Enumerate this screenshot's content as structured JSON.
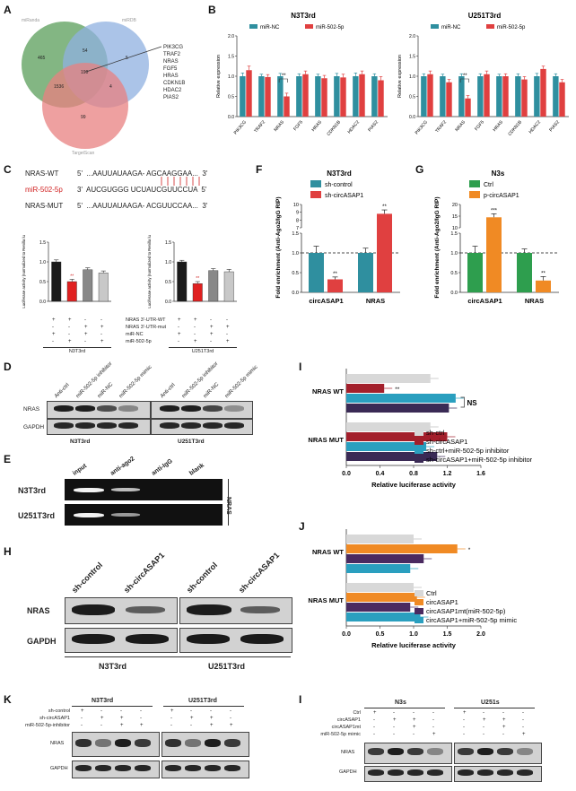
{
  "colors": {
    "teal": "#2f8f9f",
    "red": "#e04040",
    "darkred": "#a31f2b",
    "navy": "#3a2a55",
    "blue": "#2a9fbf",
    "green": "#2e9e4e",
    "orange": "#f08a24",
    "purple": "#4a2a60",
    "lightgray": "#d8d8d8"
  },
  "panel_labels": {
    "A": "A",
    "B": "B",
    "C": "C",
    "D": "D",
    "E": "E",
    "F": "F",
    "G": "G",
    "H": "H",
    "I": "I",
    "J": "J",
    "K": "K",
    "L": "I"
  },
  "panelA": {
    "top_left_label": "miRanda",
    "top_right_label": "miRDB",
    "bottom_label": "TargetScan",
    "counts": [
      "465",
      "54",
      "5",
      "1536",
      "190",
      "4",
      "99"
    ],
    "genes": [
      "PIK3CG",
      "TRAF2",
      "NRAS",
      "FGF5",
      "HRAS",
      "CDKN1B",
      "HDAC2",
      "PIAS2"
    ]
  },
  "panelC": {
    "wt_label": "NRAS-WT",
    "wt_seq": "5'  ...AAUUAUAAGA- AGCAAGGAA...  3'",
    "mir_label": "miR-502-5p",
    "mir_seq": "3'  AUCGUGGG UCUAUCGUUCCUA  5'",
    "mut_label": "NRAS-MUT",
    "mut_seq": "5'  ...AAUUAUAAGA- ACGUUCCAA...  3'",
    "ylabel": "Relative Luciferase activity (normalized to Renilla luciferase)",
    "rows": [
      "NRAS 3'-UTR-WT",
      "NRAS 3'-UTR-mut",
      "miR-NC",
      "miR-502-5p"
    ],
    "signs": [
      [
        "+",
        "+",
        "-",
        "-"
      ],
      [
        "-",
        "-",
        "+",
        "+"
      ],
      [
        "+",
        "-",
        "+",
        "-"
      ],
      [
        "-",
        "+",
        "-",
        "+"
      ]
    ],
    "group1": "N3T3rd",
    "group2": "U251T3rd"
  },
  "panelD": {
    "lanes": [
      "Anti-ctrl",
      "miR-502-5p inhibitor",
      "miR-NC",
      "miR-502-5p mimic",
      "Anti-ctrl",
      "miR-502-5p inhibitor",
      "miR-NC",
      "miR-502-5p mimic"
    ],
    "rows": [
      "NRAS",
      "GAPDH"
    ],
    "group1": "N3T3rd",
    "group2": "U251T3rd"
  },
  "panelE": {
    "lanes": [
      "input",
      "anti-ago2",
      "anti-IgG",
      "blank"
    ],
    "rows": [
      "N3T3rd",
      "U251T3rd"
    ],
    "side": "NRAS"
  },
  "panelH": {
    "lanes": [
      "sh-control",
      "sh-circASAP1",
      "sh-control",
      "sh-circASAP1"
    ],
    "rows": [
      "NRAS",
      "GAPDH"
    ],
    "group1": "N3T3rd",
    "group2": "U251T3rd"
  },
  "panelK": {
    "rows": [
      "sh-control",
      "sh-circASAP1",
      "miR-502-5p-inhibitor"
    ],
    "signs": [
      [
        "+",
        "-",
        "-",
        "-"
      ],
      [
        "-",
        "+",
        "+",
        "-"
      ],
      [
        "-",
        "-",
        "+",
        "+"
      ]
    ],
    "blots": [
      "NRAS",
      "GAPDH"
    ],
    "group1": "N3T3rd",
    "group2": "U251T3rd"
  },
  "panelL": {
    "rows": [
      "Ctrl",
      "circASAP1",
      "circASAP1mt",
      "miR-502-5p mimic"
    ],
    "signs": [
      [
        "+",
        "-",
        "-",
        "-"
      ],
      [
        "-",
        "+",
        "+",
        "-"
      ],
      [
        "-",
        "-",
        "+",
        "-"
      ],
      [
        "-",
        "-",
        "-",
        "+"
      ]
    ],
    "blots": [
      "NRAS",
      "GAPDH"
    ],
    "group1": "N3s",
    "group2": "U251s"
  },
  "chart_data": [
    {
      "id": "B1",
      "type": "bar",
      "title": "N3T3rd",
      "ylabel": "Relative expression",
      "ylim": [
        0,
        2
      ],
      "yticks": [
        "0.0",
        "0.5",
        "1.0",
        "1.5",
        "2.0"
      ],
      "categories": [
        "PIK3CG",
        "TRAF2",
        "NRAS",
        "FGF5",
        "HRAS",
        "CDKN1B",
        "HDAC2",
        "PIAS2"
      ],
      "series": [
        {
          "name": "miR-NC",
          "color": "#2f8f9f",
          "values": [
            1.0,
            1.0,
            1.0,
            1.0,
            1.0,
            1.0,
            1.0,
            1.0
          ],
          "errors": [
            0.08,
            0.05,
            0.07,
            0.06,
            0.05,
            0.07,
            0.08,
            0.06
          ]
        },
        {
          "name": "miR-502-5p",
          "color": "#e04040",
          "values": [
            1.15,
            0.98,
            0.5,
            1.05,
            0.95,
            0.97,
            1.05,
            0.9
          ],
          "errors": [
            0.1,
            0.06,
            0.08,
            0.08,
            0.07,
            0.08,
            0.08,
            0.09
          ]
        }
      ],
      "annotation": {
        "category": "NRAS",
        "text": "**"
      }
    },
    {
      "id": "B2",
      "type": "bar",
      "title": "U251T3rd",
      "ylabel": "Relative expression",
      "ylim": [
        0,
        2
      ],
      "yticks": [
        "0.0",
        "0.5",
        "1.0",
        "1.5",
        "2.0"
      ],
      "categories": [
        "PIK3CG",
        "TRAF2",
        "NRAS",
        "FGF5",
        "HRAS",
        "CDKN1B",
        "HDAC2",
        "PIAS2"
      ],
      "series": [
        {
          "name": "miR-NC",
          "color": "#2f8f9f",
          "values": [
            1.0,
            1.0,
            1.0,
            1.0,
            1.0,
            1.0,
            1.0,
            1.0
          ],
          "errors": [
            0.06,
            0.05,
            0.06,
            0.06,
            0.05,
            0.06,
            0.07,
            0.06
          ]
        },
        {
          "name": "miR-502-5p",
          "color": "#e04040",
          "values": [
            1.05,
            0.85,
            0.45,
            1.05,
            1.0,
            0.92,
            1.18,
            0.85
          ],
          "errors": [
            0.08,
            0.07,
            0.07,
            0.08,
            0.06,
            0.07,
            0.07,
            0.07
          ]
        }
      ],
      "annotation": {
        "category": "NRAS",
        "text": "**"
      }
    },
    {
      "id": "C1",
      "type": "bar",
      "title": "",
      "ylim": [
        0,
        1.5
      ],
      "yticks": [
        "0.0",
        "0.5",
        "1.0",
        "1.5"
      ],
      "values": [
        1.0,
        0.5,
        0.8,
        0.72
      ],
      "errors": [
        0.05,
        0.06,
        0.05,
        0.05
      ],
      "colors": [
        "#1a1a1a",
        "#e02020",
        "#888888",
        "#c8c8c8"
      ],
      "annotation": {
        "index": 1,
        "text": "**"
      }
    },
    {
      "id": "C2",
      "type": "bar",
      "title": "",
      "ylim": [
        0,
        1.5
      ],
      "yticks": [
        "0.0",
        "0.5",
        "1.0",
        "1.5"
      ],
      "values": [
        1.0,
        0.45,
        0.78,
        0.75
      ],
      "errors": [
        0.04,
        0.05,
        0.05,
        0.06
      ],
      "colors": [
        "#1a1a1a",
        "#e02020",
        "#888888",
        "#c8c8c8"
      ],
      "annotation": {
        "index": 1,
        "text": "**"
      }
    },
    {
      "id": "F",
      "type": "bar",
      "title": "N3T3rd",
      "ylabel": "Fold enrichment (Anti-Ago2/IgG RIP)",
      "yticks": [
        "0.0",
        "0.5",
        "1.0",
        "1.5",
        "7",
        "8",
        "9",
        "10"
      ],
      "categories": [
        "circASAP1",
        "NRAS"
      ],
      "series": [
        {
          "name": "sh-control",
          "color": "#2f8f9f",
          "values": [
            1.0,
            1.0
          ],
          "errors": [
            0.17,
            0.12
          ]
        },
        {
          "name": "sh-circASAP1",
          "color": "#e04040",
          "values": [
            0.33,
            8.8
          ],
          "errors": [
            0.06,
            0.5
          ]
        }
      ],
      "annotations": [
        "**",
        "**"
      ]
    },
    {
      "id": "G",
      "type": "bar",
      "title": "N3s",
      "ylabel": "Fold enrichment (Anti-Ago2/IgG RIP)",
      "yticks": [
        "0.0",
        "0.5",
        "1.0",
        "1.5",
        "10",
        "15",
        "20"
      ],
      "categories": [
        "circASAP1",
        "NRAS"
      ],
      "series": [
        {
          "name": "Ctrl",
          "color": "#2e9e4e",
          "values": [
            1.0,
            1.0
          ],
          "errors": [
            0.17,
            0.1
          ]
        },
        {
          "name": "p-circASAP1",
          "color": "#f08a24",
          "values": [
            14.5,
            0.3
          ],
          "errors": [
            1.5,
            0.1
          ]
        }
      ],
      "annotations": [
        "***",
        "**"
      ]
    },
    {
      "id": "I",
      "type": "bar",
      "orientation": "horizontal",
      "xlabel": "Relative luciferase activity",
      "xlim": [
        0,
        1.6
      ],
      "xticks": [
        "0.0",
        "0.4",
        "0.8",
        "1.2",
        "1.6"
      ],
      "categories": [
        "NRAS WT",
        "NRAS MUT"
      ],
      "series": [
        {
          "name": "sh-ctrl",
          "color": "#d8d8d8",
          "values": [
            1.0,
            1.0
          ]
        },
        {
          "name": "sh-circASAP1",
          "color": "#a31f2b",
          "values": [
            0.45,
            1.2
          ]
        },
        {
          "name": "sh-ctrl+miR-502-5p inhibitor",
          "color": "#2a9fbf",
          "values": [
            1.3,
            0.95
          ]
        },
        {
          "name": "sh-circASAP1+miR-502-5p inhibitor",
          "color": "#3a2a55",
          "values": [
            1.22,
            1.08
          ]
        }
      ],
      "annotations": [
        "**",
        "NS"
      ]
    },
    {
      "id": "J",
      "type": "bar",
      "orientation": "horizontal",
      "xlabel": "Relative luciferase activity",
      "xlim": [
        0,
        2.0
      ],
      "xticks": [
        "0.0",
        "0.5",
        "1.0",
        "1.5",
        "2.0"
      ],
      "categories": [
        "NRAS WT",
        "NRAS MUT"
      ],
      "series": [
        {
          "name": "Ctrl",
          "color": "#d8d8d8",
          "values": [
            1.0,
            1.0
          ]
        },
        {
          "name": "circASAP1",
          "color": "#f08a24",
          "values": [
            1.65,
            1.05
          ]
        },
        {
          "name": "circASAP1mt(miR-502-5p)",
          "color": "#4a2a60",
          "values": [
            1.15,
            0.95
          ]
        },
        {
          "name": "circASAP1+miR-502-5p mimic",
          "color": "#2a9fbf",
          "values": [
            0.95,
            1.1
          ]
        }
      ],
      "annotations": [
        "*"
      ]
    }
  ]
}
